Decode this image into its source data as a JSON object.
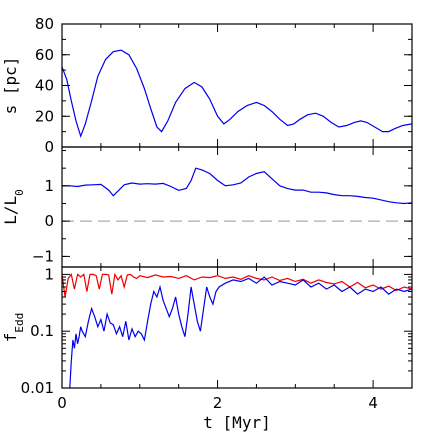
{
  "chart_data": [
    {
      "type": "line",
      "panel": "top",
      "ylabel": "s [pc]",
      "xlim": [
        0,
        4.5
      ],
      "ylim": [
        0,
        80
      ],
      "yticks": [
        0,
        20,
        40,
        60,
        80
      ],
      "ytick_labels": [
        "0",
        "20",
        "40",
        "60",
        "80"
      ],
      "series": [
        {
          "color": "#0000ee",
          "x": [
            0.0,
            0.06,
            0.12,
            0.18,
            0.24,
            0.3,
            0.38,
            0.46,
            0.56,
            0.66,
            0.76,
            0.86,
            0.96,
            1.06,
            1.14,
            1.22,
            1.28,
            1.36,
            1.46,
            1.58,
            1.7,
            1.8,
            1.9,
            2.0,
            2.08,
            2.16,
            2.26,
            2.38,
            2.5,
            2.6,
            2.7,
            2.8,
            2.9,
            2.98,
            3.06,
            3.16,
            3.26,
            3.36,
            3.46,
            3.56,
            3.66,
            3.76,
            3.84,
            3.92,
            4.02,
            4.12,
            4.2,
            4.28,
            4.38,
            4.5
          ],
          "y": [
            52,
            44,
            30,
            17,
            7,
            15,
            30,
            46,
            57,
            62,
            63,
            60,
            51,
            38,
            25,
            13,
            10,
            17,
            29,
            38,
            42,
            39,
            31,
            20,
            15,
            18,
            23,
            27,
            29,
            27,
            23,
            18,
            14,
            15,
            18,
            21,
            22,
            20,
            16,
            13,
            14,
            16,
            17,
            16,
            13,
            10,
            10,
            12,
            14,
            15
          ]
        }
      ]
    },
    {
      "type": "line",
      "panel": "middle",
      "ylabel": "L/L₀",
      "xlim": [
        0,
        4.5
      ],
      "ylim": [
        -1.3,
        2.1
      ],
      "yticks": [
        -1,
        0,
        1
      ],
      "ytick_labels": [
        "−1",
        "0",
        "1"
      ],
      "series": [
        {
          "color": "#0000ee",
          "x": [
            0.0,
            0.1,
            0.2,
            0.3,
            0.4,
            0.5,
            0.6,
            0.66,
            0.72,
            0.8,
            0.9,
            1.0,
            1.1,
            1.2,
            1.3,
            1.4,
            1.5,
            1.6,
            1.66,
            1.72,
            1.8,
            1.9,
            2.0,
            2.1,
            2.2,
            2.3,
            2.4,
            2.5,
            2.6,
            2.7,
            2.8,
            2.9,
            3.0,
            3.1,
            3.2,
            3.3,
            3.4,
            3.5,
            3.6,
            3.7,
            3.8,
            3.9,
            4.0,
            4.1,
            4.2,
            4.3,
            4.4,
            4.5
          ],
          "y": [
            1.0,
            1.0,
            0.98,
            1.02,
            1.03,
            1.04,
            0.88,
            0.72,
            0.85,
            1.03,
            1.08,
            1.05,
            1.06,
            1.05,
            1.07,
            0.98,
            0.87,
            0.93,
            1.15,
            1.5,
            1.45,
            1.35,
            1.15,
            1.0,
            1.03,
            1.08,
            1.25,
            1.35,
            1.4,
            1.2,
            1.0,
            0.92,
            0.88,
            0.88,
            0.82,
            0.82,
            0.8,
            0.75,
            0.72,
            0.72,
            0.7,
            0.67,
            0.65,
            0.6,
            0.55,
            0.52,
            0.5,
            0.52
          ]
        },
        {
          "style": "dashed",
          "color": "#999999",
          "x": [
            0,
            4.5
          ],
          "y": [
            0,
            0
          ]
        }
      ]
    },
    {
      "type": "line",
      "panel": "bottom",
      "ylabel": "fEdd",
      "xlabel": "t [Myr]",
      "xlim": [
        0,
        4.5
      ],
      "ylim": [
        0.01,
        1.35
      ],
      "log_y": true,
      "yticks": [
        0.01,
        0.1,
        1
      ],
      "ytick_labels": [
        "0.01",
        "0.1",
        "1"
      ],
      "xticks": [
        0,
        2,
        4
      ],
      "xtick_labels": [
        "0",
        "2",
        "4"
      ],
      "series": [
        {
          "color": "#ee0000",
          "x": [
            0.0,
            0.04,
            0.08,
            0.12,
            0.16,
            0.2,
            0.24,
            0.28,
            0.32,
            0.36,
            0.4,
            0.44,
            0.48,
            0.52,
            0.56,
            0.6,
            0.64,
            0.68,
            0.72,
            0.76,
            0.8,
            0.84,
            0.88,
            0.92,
            0.96,
            1.0,
            1.1,
            1.2,
            1.3,
            1.4,
            1.5,
            1.6,
            1.7,
            1.8,
            1.9,
            2.0,
            2.1,
            2.2,
            2.3,
            2.4,
            2.5,
            2.6,
            2.7,
            2.8,
            2.9,
            3.0,
            3.1,
            3.2,
            3.3,
            3.4,
            3.5,
            3.6,
            3.7,
            3.8,
            3.9,
            4.0,
            4.1,
            4.2,
            4.3,
            4.4,
            4.5
          ],
          "y": [
            1.0,
            0.4,
            0.85,
            1.0,
            0.55,
            1.0,
            0.9,
            1.0,
            0.5,
            1.0,
            1.0,
            0.95,
            0.55,
            1.0,
            1.0,
            0.98,
            0.45,
            1.0,
            0.8,
            0.95,
            0.6,
            0.98,
            1.0,
            0.9,
            0.85,
            0.95,
            0.88,
            0.98,
            0.9,
            0.92,
            0.85,
            0.95,
            0.8,
            0.9,
            0.88,
            0.95,
            0.85,
            0.9,
            0.82,
            0.95,
            0.85,
            0.8,
            0.9,
            0.78,
            0.85,
            0.75,
            0.82,
            0.7,
            0.8,
            0.72,
            0.68,
            0.75,
            0.6,
            0.72,
            0.58,
            0.65,
            0.55,
            0.62,
            0.52,
            0.6,
            0.55
          ]
        },
        {
          "color": "#0000ee",
          "x": [
            0.1,
            0.12,
            0.14,
            0.16,
            0.18,
            0.2,
            0.22,
            0.24,
            0.26,
            0.3,
            0.34,
            0.38,
            0.42,
            0.46,
            0.5,
            0.54,
            0.58,
            0.62,
            0.66,
            0.7,
            0.74,
            0.78,
            0.82,
            0.86,
            0.9,
            0.94,
            0.98,
            1.02,
            1.06,
            1.1,
            1.14,
            1.18,
            1.22,
            1.26,
            1.3,
            1.34,
            1.38,
            1.42,
            1.46,
            1.5,
            1.54,
            1.58,
            1.62,
            1.66,
            1.7,
            1.74,
            1.78,
            1.82,
            1.86,
            1.9,
            1.94,
            1.98,
            2.02,
            2.1,
            2.2,
            2.3,
            2.4,
            2.5,
            2.6,
            2.7,
            2.8,
            2.9,
            3.0,
            3.1,
            3.2,
            3.3,
            3.4,
            3.5,
            3.6,
            3.7,
            3.8,
            3.9,
            4.0,
            4.1,
            4.2,
            4.3,
            4.4,
            4.5
          ],
          "y": [
            0.01,
            0.03,
            0.07,
            0.05,
            0.09,
            0.06,
            0.08,
            0.12,
            0.1,
            0.08,
            0.15,
            0.25,
            0.18,
            0.12,
            0.16,
            0.1,
            0.2,
            0.14,
            0.13,
            0.09,
            0.12,
            0.08,
            0.15,
            0.07,
            0.11,
            0.08,
            0.1,
            0.09,
            0.07,
            0.15,
            0.3,
            0.5,
            0.4,
            0.6,
            0.35,
            0.25,
            0.18,
            0.25,
            0.4,
            0.2,
            0.12,
            0.08,
            0.2,
            0.6,
            0.3,
            0.15,
            0.1,
            0.25,
            0.6,
            0.4,
            0.3,
            0.5,
            0.6,
            0.7,
            0.8,
            0.75,
            0.85,
            0.7,
            0.9,
            0.65,
            0.75,
            0.7,
            0.65,
            0.8,
            0.6,
            0.7,
            0.55,
            0.65,
            0.5,
            0.6,
            0.45,
            0.55,
            0.5,
            0.6,
            0.45,
            0.55,
            0.5,
            0.55
          ]
        }
      ]
    }
  ]
}
